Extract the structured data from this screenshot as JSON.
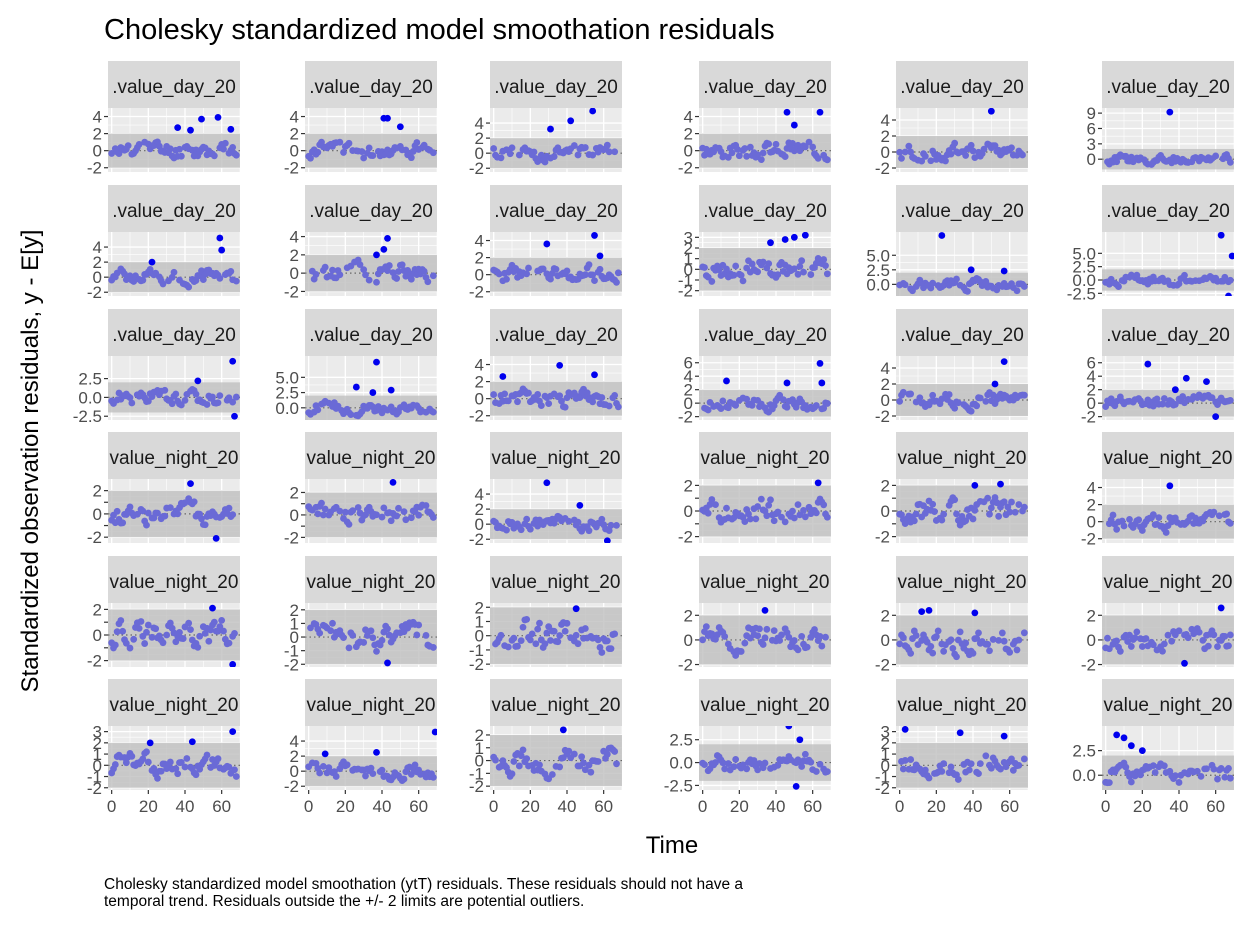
{
  "title": "Cholesky standardized model smoothation residuals",
  "xlabel": "Time",
  "ylabel": "Standardized observation residuals, y - E[y]",
  "caption": "Cholesky standardized model smoothation (ytT) residuals. These residuals should not have a temporal trend. Residuals outside the +/- 2 limits are potential outliers.",
  "colors": {
    "panel_bg": "#ebebeb",
    "grid": "#ffffff",
    "strip_bg": "#d9d9d9",
    "band": "#bfbfbf",
    "point": "#6a6ad6",
    "outlier": "#0000ee"
  },
  "chart_data": {
    "type": "scatter",
    "layout": "facet grid 6 x 6",
    "x_ticks": [
      "0",
      "20",
      "40",
      "60"
    ],
    "xlim": [
      -2,
      70
    ],
    "band": [
      -2,
      2
    ],
    "panels": [
      {
        "strip": ".value_day_20",
        "ylim": [
          -2.5,
          5
        ],
        "y_ticks": [
          -2,
          0,
          2,
          4
        ],
        "y_tick_labels": [
          "-2",
          "0",
          "2",
          "4"
        ],
        "outliers": [
          [
            36,
            2.7
          ],
          [
            43,
            2.4
          ],
          [
            49,
            3.7
          ],
          [
            58,
            3.9
          ],
          [
            65,
            2.5
          ]
        ],
        "seed": 11
      },
      {
        "strip": ".value_day_20",
        "ylim": [
          -2.5,
          5
        ],
        "y_ticks": [
          -2,
          0,
          2,
          4
        ],
        "y_tick_labels": [
          "-2",
          "0",
          "2",
          "4"
        ],
        "outliers": [
          [
            41,
            3.8
          ],
          [
            43,
            3.8
          ],
          [
            50,
            2.8
          ]
        ],
        "seed": 12
      },
      {
        "strip": ".value_day_20",
        "ylim": [
          -2.5,
          6
        ],
        "y_ticks": [
          -2,
          0,
          2,
          4
        ],
        "y_tick_labels": [
          "-2",
          "0",
          "2",
          "4"
        ],
        "outliers": [
          [
            31,
            3.2
          ],
          [
            42,
            4.3
          ],
          [
            54,
            5.6
          ]
        ],
        "seed": 13
      },
      {
        "strip": ".value_day_20",
        "ylim": [
          -2.5,
          5
        ],
        "y_ticks": [
          -2,
          0,
          2,
          4
        ],
        "y_tick_labels": [
          "-2",
          "0",
          "2",
          "4"
        ],
        "outliers": [
          [
            46,
            4.5
          ],
          [
            50,
            3.0
          ],
          [
            64,
            4.5
          ]
        ],
        "seed": 14
      },
      {
        "strip": ".value_day_20",
        "ylim": [
          -2.5,
          5.5
        ],
        "y_ticks": [
          -2,
          0,
          2,
          4
        ],
        "y_tick_labels": [
          "-2",
          "0",
          "2",
          "4"
        ],
        "outliers": [
          [
            50,
            5.1
          ]
        ],
        "seed": 15
      },
      {
        "strip": ".value_day_20",
        "ylim": [
          -2.5,
          10
        ],
        "y_ticks": [
          0,
          3,
          6,
          9
        ],
        "y_tick_labels": [
          "0",
          "3",
          "6",
          "9"
        ],
        "outliers": [
          [
            35,
            9.2
          ]
        ],
        "seed": 16
      },
      {
        "strip": ".value_day_20",
        "ylim": [
          -2.5,
          6
        ],
        "y_ticks": [
          -2,
          0,
          2,
          4
        ],
        "y_tick_labels": [
          "-2",
          "0",
          "2",
          "4"
        ],
        "outliers": [
          [
            59,
            5.2
          ],
          [
            60,
            3.6
          ],
          [
            22,
            2.0
          ]
        ],
        "seed": 21
      },
      {
        "strip": ".value_day_20",
        "ylim": [
          -2.5,
          4.5
        ],
        "y_ticks": [
          -2,
          0,
          2,
          4
        ],
        "y_tick_labels": [
          "-2",
          "0",
          "2",
          "4"
        ],
        "outliers": [
          [
            37,
            2.0
          ],
          [
            43,
            3.8
          ],
          [
            41,
            2.6
          ]
        ],
        "seed": 22
      },
      {
        "strip": ".value_day_20",
        "ylim": [
          -2.5,
          5
        ],
        "y_ticks": [
          -2,
          0,
          2,
          4
        ],
        "y_tick_labels": [
          "-2",
          "0",
          "2",
          "4"
        ],
        "outliers": [
          [
            29,
            3.6
          ],
          [
            55,
            4.6
          ],
          [
            58,
            2.2
          ]
        ],
        "seed": 23
      },
      {
        "strip": ".value_day_20",
        "ylim": [
          -2.5,
          3.5
        ],
        "y_ticks": [
          -2,
          -1,
          0,
          1,
          2,
          3
        ],
        "y_tick_labels": [
          "-2",
          "-1",
          "0",
          "1",
          "2",
          "3"
        ],
        "outliers": [
          [
            37,
            2.5
          ],
          [
            45,
            2.8
          ],
          [
            50,
            3.0
          ],
          [
            56,
            3.2
          ]
        ],
        "seed": 24
      },
      {
        "strip": ".value_day_20",
        "ylim": [
          -2,
          9
        ],
        "y_ticks": [
          0,
          2.5,
          5
        ],
        "y_tick_labels": [
          "0.0",
          "2.5",
          "5.0"
        ],
        "outliers": [
          [
            23,
            8.4
          ],
          [
            39,
            2.5
          ],
          [
            57,
            2.3
          ]
        ],
        "seed": 25
      },
      {
        "strip": ".value_day_20",
        "ylim": [
          -3,
          9
        ],
        "y_ticks": [
          -2.5,
          0,
          2.5,
          5
        ],
        "y_tick_labels": [
          "-2.5",
          "0.0",
          "2.5",
          "5.0"
        ],
        "outliers": [
          [
            63,
            8.4
          ],
          [
            69,
            4.5
          ],
          [
            67,
            -3.0
          ]
        ],
        "seed": 26
      },
      {
        "strip": ".value_day_20",
        "ylim": [
          -3,
          5.5
        ],
        "y_ticks": [
          -2.5,
          0,
          2.5
        ],
        "y_tick_labels": [
          "-2.5",
          "0.0",
          "2.5"
        ],
        "outliers": [
          [
            47,
            2.2
          ],
          [
            66,
            4.8
          ],
          [
            67,
            -2.5
          ]
        ],
        "seed": 31
      },
      {
        "strip": ".value_day_20",
        "ylim": [
          -2,
          8.5
        ],
        "y_ticks": [
          0,
          2.5,
          5
        ],
        "y_tick_labels": [
          "0.0",
          "2.5",
          "5.0"
        ],
        "outliers": [
          [
            26,
            3.4
          ],
          [
            35,
            2.5
          ],
          [
            37,
            7.5
          ],
          [
            45,
            2.9
          ]
        ],
        "seed": 32
      },
      {
        "strip": ".value_day_20",
        "ylim": [
          -2.5,
          5
        ],
        "y_ticks": [
          -2,
          0,
          2,
          4
        ],
        "y_tick_labels": [
          "-2",
          "0",
          "2",
          "4"
        ],
        "outliers": [
          [
            5,
            2.6
          ],
          [
            36,
            3.9
          ],
          [
            55,
            2.8
          ]
        ],
        "seed": 33
      },
      {
        "strip": ".value_day_20",
        "ylim": [
          -2.5,
          7
        ],
        "y_ticks": [
          -2,
          0,
          2,
          4,
          6
        ],
        "y_tick_labels": [
          "-2",
          "0",
          "2",
          "4",
          "6"
        ],
        "outliers": [
          [
            13,
            3.3
          ],
          [
            46,
            3.0
          ],
          [
            64,
            5.9
          ],
          [
            65,
            3.0
          ]
        ],
        "seed": 34
      },
      {
        "strip": ".value_day_20",
        "ylim": [
          -2.5,
          5.5
        ],
        "y_ticks": [
          -2,
          0,
          2,
          4
        ],
        "y_tick_labels": [
          "-2",
          "0",
          "2",
          "4"
        ],
        "outliers": [
          [
            52,
            2.0
          ],
          [
            57,
            4.8
          ]
        ],
        "seed": 35
      },
      {
        "strip": ".value_day_20",
        "ylim": [
          -2.5,
          7
        ],
        "y_ticks": [
          -2,
          0,
          2,
          4,
          6
        ],
        "y_tick_labels": [
          "-2",
          "0",
          "2",
          "4",
          "6"
        ],
        "outliers": [
          [
            23,
            5.8
          ],
          [
            38,
            2.0
          ],
          [
            44,
            3.7
          ],
          [
            55,
            3.2
          ],
          [
            60,
            -2.0
          ]
        ],
        "seed": 36
      },
      {
        "strip": "value_night_20",
        "ylim": [
          -2.5,
          3
        ],
        "y_ticks": [
          -2,
          -1,
          0,
          1,
          2
        ],
        "y_tick_labels": [
          "-2",
          "",
          "0",
          "",
          "2"
        ],
        "outliers": [
          [
            43,
            2.6
          ],
          [
            57,
            -2.1
          ]
        ],
        "seed": 41
      },
      {
        "strip": "value_night_20",
        "ylim": [
          -2.5,
          3.2
        ],
        "y_ticks": [
          -2,
          -1,
          0,
          1,
          2
        ],
        "y_tick_labels": [
          "-2",
          "",
          "0",
          "",
          "2"
        ],
        "outliers": [
          [
            46,
            2.9
          ]
        ],
        "seed": 42
      },
      {
        "strip": "value_night_20",
        "ylim": [
          -2.5,
          6
        ],
        "y_ticks": [
          -2,
          0,
          2,
          4
        ],
        "y_tick_labels": [
          "-2",
          "0",
          "2",
          "4"
        ],
        "outliers": [
          [
            29,
            5.5
          ],
          [
            47,
            2.5
          ],
          [
            62,
            -2.2
          ]
        ],
        "seed": 43
      },
      {
        "strip": "value_night_20",
        "ylim": [
          -2.5,
          2.5
        ],
        "y_ticks": [
          -2,
          -1,
          0,
          1,
          2
        ],
        "y_tick_labels": [
          "-2",
          "",
          "0",
          "",
          "2"
        ],
        "outliers": [
          [
            63,
            2.2
          ]
        ],
        "seed": 44
      },
      {
        "strip": "value_night_20",
        "ylim": [
          -2.5,
          2.5
        ],
        "y_ticks": [
          -2,
          -1,
          0,
          1,
          2
        ],
        "y_tick_labels": [
          "-2",
          "",
          "0",
          "",
          "2"
        ],
        "outliers": [
          [
            41,
            2.0
          ],
          [
            55,
            2.1
          ]
        ],
        "seed": 45
      },
      {
        "strip": "value_night_20",
        "ylim": [
          -2.5,
          5
        ],
        "y_ticks": [
          -2,
          0,
          2,
          4
        ],
        "y_tick_labels": [
          "-2",
          "0",
          "2",
          "4"
        ],
        "outliers": [
          [
            35,
            4.2
          ]
        ],
        "seed": 46
      },
      {
        "strip": "value_night_20",
        "ylim": [
          -2.5,
          2.5
        ],
        "y_ticks": [
          -2,
          -1,
          0,
          1,
          2
        ],
        "y_tick_labels": [
          "-2",
          "",
          "0",
          "",
          "2"
        ],
        "outliers": [
          [
            55,
            2.1
          ],
          [
            66,
            -2.3
          ]
        ],
        "seed": 51
      },
      {
        "strip": "value_night_20",
        "ylim": [
          -2.2,
          2.5
        ],
        "y_ticks": [
          -2,
          -1,
          0,
          1,
          2
        ],
        "y_tick_labels": [
          "-2",
          "-1",
          "0",
          "1",
          "2"
        ],
        "outliers": [
          [
            43,
            -1.9
          ]
        ],
        "seed": 52
      },
      {
        "strip": "value_night_20",
        "ylim": [
          -2.2,
          2.3
        ],
        "y_ticks": [
          -2,
          -1,
          0,
          1,
          2
        ],
        "y_tick_labels": [
          "-2",
          "-1",
          "0",
          "1",
          "2"
        ],
        "outliers": [
          [
            45,
            1.9
          ]
        ],
        "seed": 53
      },
      {
        "strip": "value_night_20",
        "ylim": [
          -2.2,
          3
        ],
        "y_ticks": [
          -2,
          0,
          2
        ],
        "y_tick_labels": [
          "-2",
          "0",
          "2"
        ],
        "outliers": [
          [
            34,
            2.4
          ]
        ],
        "seed": 54
      },
      {
        "strip": "value_night_20",
        "ylim": [
          -2.2,
          3
        ],
        "y_ticks": [
          -2,
          0,
          2
        ],
        "y_tick_labels": [
          "-2",
          "0",
          "2"
        ],
        "outliers": [
          [
            12,
            2.3
          ],
          [
            16,
            2.4
          ],
          [
            41,
            2.2
          ]
        ],
        "seed": 55
      },
      {
        "strip": "value_night_20",
        "ylim": [
          -2.2,
          3
        ],
        "y_ticks": [
          -2,
          0,
          2
        ],
        "y_tick_labels": [
          "-2",
          "0",
          "2"
        ],
        "outliers": [
          [
            63,
            2.6
          ],
          [
            43,
            -1.9
          ]
        ],
        "seed": 56
      },
      {
        "strip": "value_night_20",
        "ylim": [
          -2.2,
          3.5
        ],
        "y_ticks": [
          -2,
          -1,
          0,
          1,
          2,
          3
        ],
        "y_tick_labels": [
          "-2",
          "-1",
          "0",
          "1",
          "2",
          "3"
        ],
        "outliers": [
          [
            21,
            2.0
          ],
          [
            44,
            2.1
          ],
          [
            66,
            3.0
          ]
        ],
        "seed": 61
      },
      {
        "strip": "value_night_20",
        "ylim": [
          -2.5,
          6
        ],
        "y_ticks": [
          -2,
          0,
          2,
          4
        ],
        "y_tick_labels": [
          "-2",
          "0",
          "2",
          "4"
        ],
        "outliers": [
          [
            9,
            2.3
          ],
          [
            37,
            2.5
          ],
          [
            69,
            5.2
          ]
        ],
        "seed": 62
      },
      {
        "strip": "value_night_20",
        "ylim": [
          -2.3,
          2.7
        ],
        "y_ticks": [
          -2,
          -1,
          0,
          1,
          2
        ],
        "y_tick_labels": [
          "-2",
          "-1",
          "0",
          "1",
          "2"
        ],
        "outliers": [
          [
            38,
            2.4
          ]
        ],
        "seed": 63
      },
      {
        "strip": "value_night_20",
        "ylim": [
          -3,
          4
        ],
        "y_ticks": [
          -2.5,
          0,
          2.5
        ],
        "y_tick_labels": [
          "-2.5",
          "0.0",
          "2.5"
        ],
        "outliers": [
          [
            47,
            4.0
          ],
          [
            51,
            -2.6
          ],
          [
            53,
            2.5
          ]
        ],
        "seed": 64
      },
      {
        "strip": "value_night_20",
        "ylim": [
          -2.2,
          3.5
        ],
        "y_ticks": [
          -2,
          -1,
          0,
          1,
          2,
          3
        ],
        "y_tick_labels": [
          "-2",
          "-1",
          "0",
          "1",
          "2",
          "3"
        ],
        "outliers": [
          [
            3,
            3.2
          ],
          [
            33,
            2.9
          ],
          [
            57,
            2.6
          ]
        ],
        "seed": 65
      },
      {
        "strip": "value_night_20",
        "ylim": [
          -1.5,
          5
        ],
        "y_ticks": [
          0,
          2.5
        ],
        "y_tick_labels": [
          "0.0",
          "2.5"
        ],
        "outliers": [
          [
            6,
            4.1
          ],
          [
            10,
            3.8
          ],
          [
            14,
            3.0
          ],
          [
            20,
            2.5
          ]
        ],
        "seed": 66
      }
    ]
  }
}
